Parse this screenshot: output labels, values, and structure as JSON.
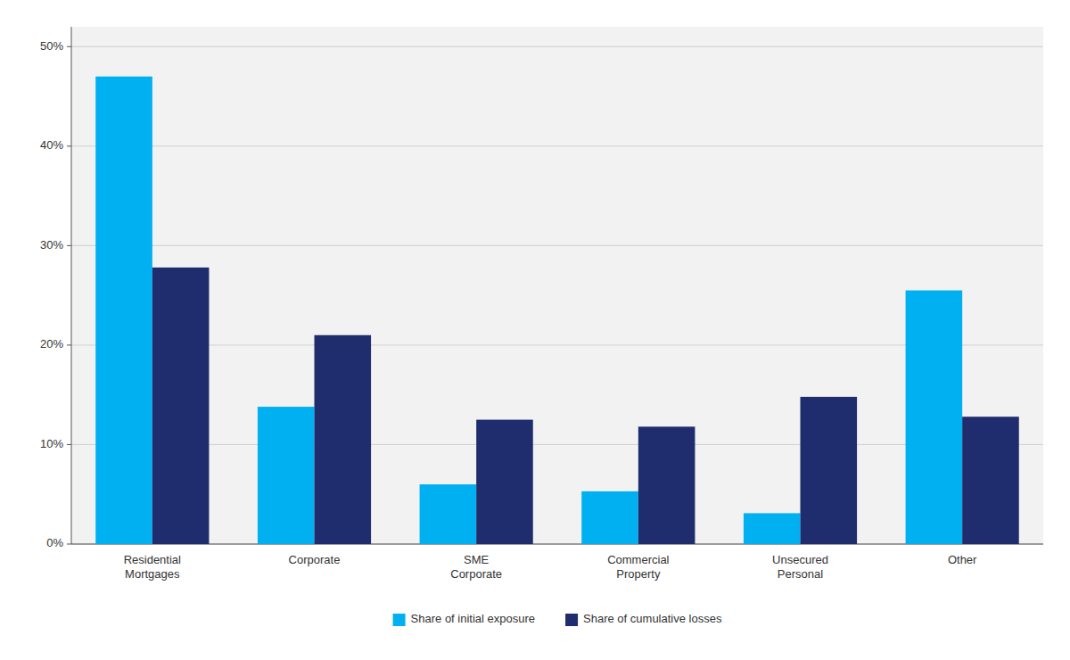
{
  "chart_data": {
    "type": "bar",
    "categories": [
      "Residential\nMortgages",
      "Corporate",
      "SME\nCorporate",
      "Commercial\nProperty",
      "Unsecured\nPersonal",
      "Other"
    ],
    "series": [
      {
        "name": "Share of initial exposure",
        "color": "#00B0F0",
        "values": [
          0.47,
          0.138,
          0.06,
          0.053,
          0.031,
          0.255
        ]
      },
      {
        "name": "Share of cumulative losses",
        "color": "#1F2D6E",
        "values": [
          0.278,
          0.21,
          0.125,
          0.118,
          0.148,
          0.128
        ]
      }
    ],
    "ylim": [
      0,
      0.52
    ],
    "yticks": [
      {
        "value": 0.0,
        "label": "0%"
      },
      {
        "value": 0.1,
        "label": "10%"
      },
      {
        "value": 0.2,
        "label": "20%"
      },
      {
        "value": 0.3,
        "label": "30%"
      },
      {
        "value": 0.4,
        "label": "40%"
      },
      {
        "value": 0.5,
        "label": "50%"
      }
    ],
    "grid": true,
    "legend": "bottom"
  }
}
